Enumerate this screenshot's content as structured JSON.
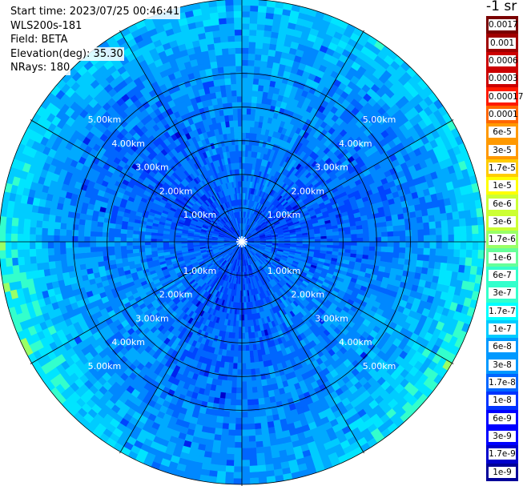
{
  "header": {
    "start_time": "Start time: 2023/07/25 00:46:41",
    "instrument": "WLS200s-181",
    "field": "Field: BETA",
    "elevation": "Elevation(deg): 35.30",
    "nrays": "NRays: 180"
  },
  "colorbar": {
    "unit_label": "-1 sr",
    "colors": [
      "#7a0000",
      "#a00000",
      "#cc0000",
      "#ff1a00",
      "#ff6600",
      "#ff9900",
      "#ffcc00",
      "#ffff00",
      "#ccff33",
      "#99ff66",
      "#66ff99",
      "#33ffcc",
      "#00ffff",
      "#00ccff",
      "#0099ff",
      "#0066ff",
      "#0033ff",
      "#0000ff",
      "#0000cc",
      "#000099"
    ],
    "labels": [
      "0.0017",
      "0.001",
      "0.0006",
      "0.0003",
      "0.00017",
      "0.0001",
      "6e-5",
      "3e-5",
      "1.7e-5",
      "1e-5",
      "6e-6",
      "3e-6",
      "1.7e-6",
      "1e-6",
      "6e-7",
      "3e-7",
      "1.7e-7",
      "1e-7",
      "6e-8",
      "3e-8",
      "1.7e-8",
      "1e-8",
      "6e-9",
      "3e-9",
      "1.7e-9",
      "1e-9"
    ]
  },
  "chart_data": {
    "type": "heatmap",
    "projection": "polar-ppi",
    "field": "BETA",
    "rings_km": [
      1,
      2,
      3,
      4,
      5
    ],
    "ring_labels": [
      "1.00km",
      "2.00km",
      "3.00km",
      "4.00km",
      "5.00km"
    ],
    "azimuth_spokes_deg": [
      0,
      30,
      60,
      90,
      120,
      150,
      180,
      210,
      240,
      270,
      300,
      330
    ],
    "max_range_km": 7.2,
    "value_range": [
      1e-09,
      0.0017
    ],
    "log_scale": true,
    "n_rays": 180
  }
}
